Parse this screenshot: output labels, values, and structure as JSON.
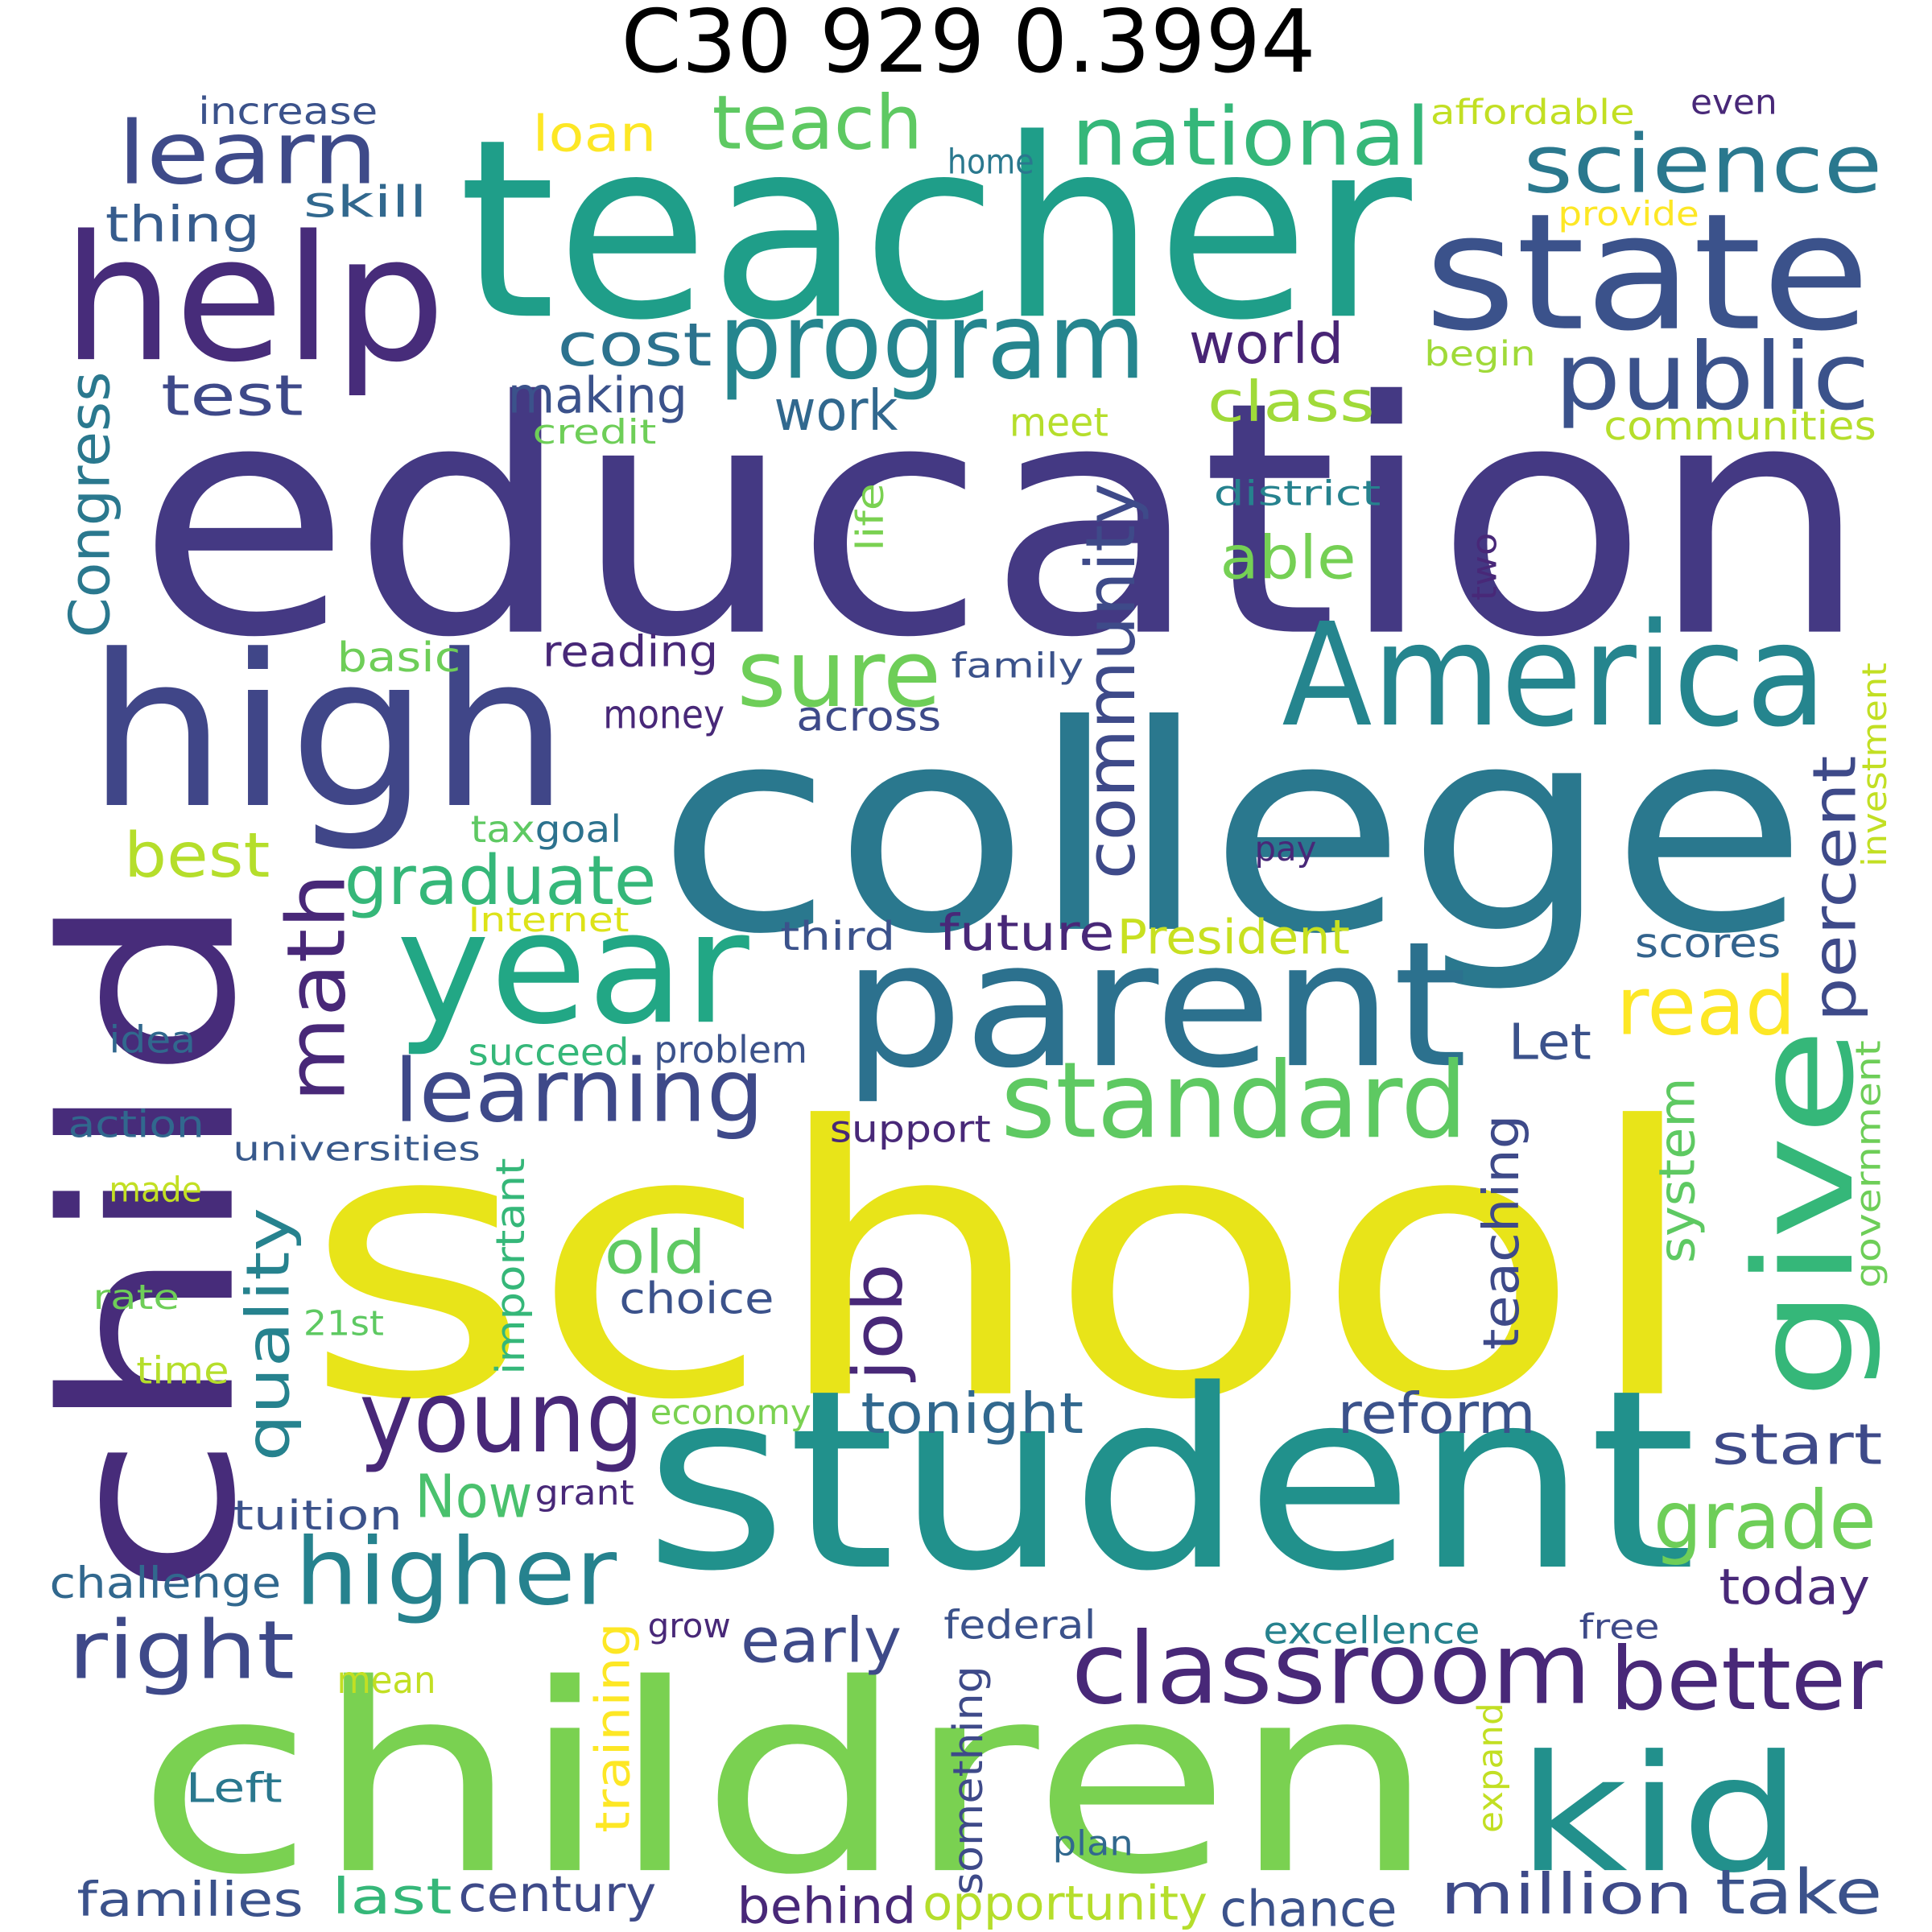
{
  "title": "C30 929 0.3994",
  "words": [
    {
      "text": "teacher",
      "color": "#1f9e89"
    },
    {
      "text": "education",
      "color": "#443983"
    },
    {
      "text": "school",
      "color": "#e8e419"
    },
    {
      "text": "college",
      "color": "#2a788e"
    },
    {
      "text": "student",
      "color": "#21918c"
    },
    {
      "text": "children",
      "color": "#7ad151"
    },
    {
      "text": "child",
      "color": "#472c7a"
    },
    {
      "text": "help",
      "color": "#472c7a"
    },
    {
      "text": "high",
      "color": "#404688"
    },
    {
      "text": "state",
      "color": "#3b528b"
    },
    {
      "text": "America",
      "color": "#25858e"
    },
    {
      "text": "parent",
      "color": "#2c718e"
    },
    {
      "text": "year",
      "color": "#22a785"
    },
    {
      "text": "program",
      "color": "#25858e"
    },
    {
      "text": "learn",
      "color": "#3e4a89"
    },
    {
      "text": "teach",
      "color": "#5ec962"
    },
    {
      "text": "national",
      "color": "#35b779"
    },
    {
      "text": "science",
      "color": "#2a788e"
    },
    {
      "text": "public",
      "color": "#3b528b"
    },
    {
      "text": "cost",
      "color": "#2c728e"
    },
    {
      "text": "test",
      "color": "#3e4989"
    },
    {
      "text": "thing",
      "color": "#365c8d"
    },
    {
      "text": "skill",
      "color": "#31688e"
    },
    {
      "text": "increase",
      "color": "#3b528b"
    },
    {
      "text": "loan",
      "color": "#fde725"
    },
    {
      "text": "home",
      "color": "#2a788e"
    },
    {
      "text": "affordable",
      "color": "#c2df23"
    },
    {
      "text": "even",
      "color": "#482878"
    },
    {
      "text": "provide",
      "color": "#fde725"
    },
    {
      "text": "begin",
      "color": "#a0da39"
    },
    {
      "text": "world",
      "color": "#482475"
    },
    {
      "text": "class",
      "color": "#a0da39"
    },
    {
      "text": "communities",
      "color": "#b5de2b"
    },
    {
      "text": "making",
      "color": "#3b528b"
    },
    {
      "text": "work",
      "color": "#31688e"
    },
    {
      "text": "meet",
      "color": "#b5de2b"
    },
    {
      "text": "credit",
      "color": "#6ece58"
    },
    {
      "text": "district",
      "color": "#26828e"
    },
    {
      "text": "able",
      "color": "#75d054"
    },
    {
      "text": "sure",
      "color": "#6ece58"
    },
    {
      "text": "basic",
      "color": "#6ece58"
    },
    {
      "text": "reading",
      "color": "#482878"
    },
    {
      "text": "family",
      "color": "#3b528b"
    },
    {
      "text": "money",
      "color": "#482878"
    },
    {
      "text": "across",
      "color": "#3e4a89"
    },
    {
      "text": "best",
      "color": "#b5de2b"
    },
    {
      "text": "graduate",
      "color": "#35b779"
    },
    {
      "text": "tax",
      "color": "#5ec962"
    },
    {
      "text": "goal",
      "color": "#2c728e"
    },
    {
      "text": "pay",
      "color": "#482878"
    },
    {
      "text": "Internet",
      "color": "#dde318"
    },
    {
      "text": "third",
      "color": "#3b528b"
    },
    {
      "text": "future",
      "color": "#482878"
    },
    {
      "text": "President",
      "color": "#c8e020"
    },
    {
      "text": "scores",
      "color": "#33638d"
    },
    {
      "text": "read",
      "color": "#fde725"
    },
    {
      "text": "learning",
      "color": "#3e4989"
    },
    {
      "text": "standard",
      "color": "#5ec962"
    },
    {
      "text": "Let",
      "color": "#3b528b"
    },
    {
      "text": "idea",
      "color": "#31688e"
    },
    {
      "text": "succeed",
      "color": "#35b779"
    },
    {
      "text": "problem",
      "color": "#3b528b"
    },
    {
      "text": "action",
      "color": "#31688e"
    },
    {
      "text": "support",
      "color": "#482878"
    },
    {
      "text": "universities",
      "color": "#38598c"
    },
    {
      "text": "made",
      "color": "#c2df23"
    },
    {
      "text": "old",
      "color": "#5ec962"
    },
    {
      "text": "choice",
      "color": "#3b528b"
    },
    {
      "text": "rate",
      "color": "#6ece58"
    },
    {
      "text": "21st",
      "color": "#5ec962"
    },
    {
      "text": "time",
      "color": "#b5de2b"
    },
    {
      "text": "economy",
      "color": "#7ad151"
    },
    {
      "text": "young",
      "color": "#482878"
    },
    {
      "text": "tonight",
      "color": "#31688e"
    },
    {
      "text": "reform",
      "color": "#3b528b"
    },
    {
      "text": "start",
      "color": "#3e4a89"
    },
    {
      "text": "Now",
      "color": "#4ac16d"
    },
    {
      "text": "grant",
      "color": "#482878"
    },
    {
      "text": "tuition",
      "color": "#3b528b"
    },
    {
      "text": "higher",
      "color": "#26828e"
    },
    {
      "text": "grade",
      "color": "#6ece58"
    },
    {
      "text": "challenge",
      "color": "#31688e"
    },
    {
      "text": "today",
      "color": "#482878"
    },
    {
      "text": "right",
      "color": "#3e4989"
    },
    {
      "text": "classroom",
      "color": "#482878"
    },
    {
      "text": "better",
      "color": "#482878"
    },
    {
      "text": "early",
      "color": "#3e4a89"
    },
    {
      "text": "grow",
      "color": "#482878"
    },
    {
      "text": "federal",
      "color": "#3b528b"
    },
    {
      "text": "excellence",
      "color": "#26828e"
    },
    {
      "text": "free",
      "color": "#3e4a89"
    },
    {
      "text": "mean",
      "color": "#c2df23"
    },
    {
      "text": "kid",
      "color": "#22908c"
    },
    {
      "text": "Left",
      "color": "#2a788e"
    },
    {
      "text": "plan",
      "color": "#31688e"
    },
    {
      "text": "families",
      "color": "#3b528b"
    },
    {
      "text": "last",
      "color": "#35b779"
    },
    {
      "text": "century",
      "color": "#3e4a89"
    },
    {
      "text": "behind",
      "color": "#482878"
    },
    {
      "text": "opportunity",
      "color": "#b5de2b"
    },
    {
      "text": "chance",
      "color": "#3b528b"
    },
    {
      "text": "million",
      "color": "#3e4a89"
    },
    {
      "text": "take",
      "color": "#3b528b"
    },
    {
      "text": "Congress",
      "color": "#2a788e"
    },
    {
      "text": "life",
      "color": "#7ad151"
    },
    {
      "text": "two",
      "color": "#482878"
    },
    {
      "text": "community",
      "color": "#3e4a89"
    },
    {
      "text": "math",
      "color": "#482878"
    },
    {
      "text": "percent",
      "color": "#3e4a89"
    },
    {
      "text": "investment",
      "color": "#c2df23"
    },
    {
      "text": "give",
      "color": "#35b779"
    },
    {
      "text": "government",
      "color": "#6ece58"
    },
    {
      "text": "system",
      "color": "#5ec962"
    },
    {
      "text": "teaching",
      "color": "#3e4a89"
    },
    {
      "text": "job",
      "color": "#482878"
    },
    {
      "text": "quality",
      "color": "#26828e"
    },
    {
      "text": "important",
      "color": "#35b779"
    },
    {
      "text": "training",
      "color": "#fde725"
    },
    {
      "text": "something",
      "color": "#3e4a89"
    },
    {
      "text": "expand",
      "color": "#c2df23"
    }
  ]
}
